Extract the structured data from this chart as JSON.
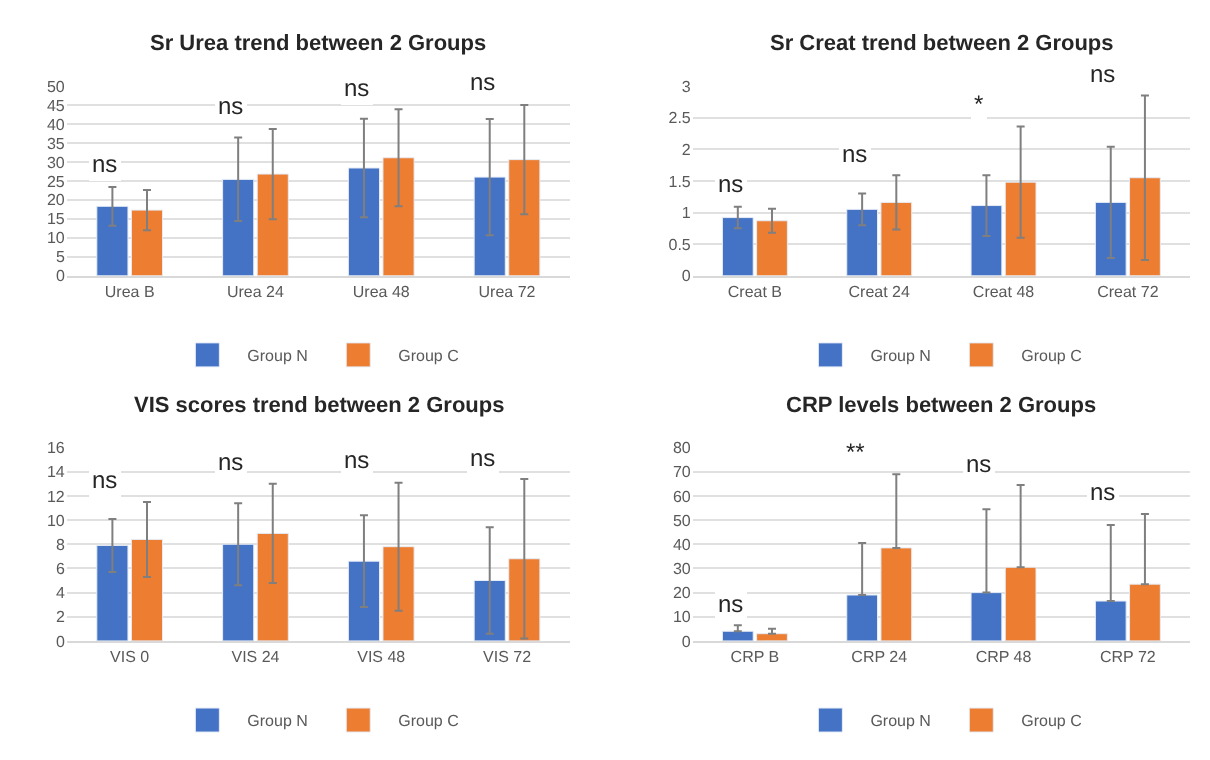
{
  "chart_data": [
    {
      "type": "bar",
      "title": "Sr Urea trend between 2 Groups",
      "categories": [
        "Urea B",
        "Urea 24",
        "Urea 48",
        "Urea 72"
      ],
      "ylim": [
        0,
        50
      ],
      "yticks": [
        0,
        5,
        10,
        15,
        20,
        25,
        30,
        35,
        40,
        45,
        50
      ],
      "grid": "y",
      "legend": "bottom",
      "series": [
        {
          "name": "Group N",
          "color": "#4472c4",
          "values": [
            18.3,
            25.4,
            28.4,
            26.0
          ],
          "errors": [
            5.1,
            11.0,
            13.0,
            15.3
          ]
        },
        {
          "name": "Group C",
          "color": "#ed7d31",
          "values": [
            17.3,
            26.8,
            31.1,
            30.6
          ],
          "errors": [
            5.3,
            11.9,
            12.8,
            14.4
          ]
        }
      ],
      "annotations": [
        "ns",
        "ns",
        "ns",
        "ns"
      ]
    },
    {
      "type": "bar",
      "title": "Sr Creat trend between 2 Groups",
      "categories": [
        "Creat B",
        "Creat 24",
        "Creat 48",
        "Creat 72"
      ],
      "ylim": [
        0,
        3
      ],
      "yticks": [
        0,
        0.5,
        1,
        1.5,
        2,
        2.5,
        3
      ],
      "grid": "y",
      "legend": "bottom",
      "series": [
        {
          "name": "Group N",
          "color": "#4472c4",
          "values": [
            0.92,
            1.05,
            1.11,
            1.16
          ],
          "errors": [
            0.17,
            0.25,
            0.48,
            0.88
          ]
        },
        {
          "name": "Group C",
          "color": "#ed7d31",
          "values": [
            0.87,
            1.16,
            1.48,
            1.55
          ],
          "errors": [
            0.19,
            0.43,
            0.88,
            1.3
          ]
        }
      ],
      "annotations": [
        "ns",
        "ns",
        "*",
        "ns"
      ]
    },
    {
      "type": "bar",
      "title": "VIS scores trend between 2 Groups",
      "categories": [
        "VIS 0",
        "VIS 24",
        "VIS 48",
        "VIS 72"
      ],
      "ylim": [
        0,
        16
      ],
      "yticks": [
        0,
        2,
        4,
        6,
        8,
        10,
        12,
        14,
        16
      ],
      "grid": "y",
      "legend": "bottom",
      "series": [
        {
          "name": "Group N",
          "color": "#4472c4",
          "values": [
            7.9,
            8.0,
            6.6,
            5.0
          ],
          "errors": [
            2.2,
            3.4,
            3.8,
            4.4
          ]
        },
        {
          "name": "Group C",
          "color": "#ed7d31",
          "values": [
            8.4,
            8.9,
            7.8,
            6.8
          ],
          "errors": [
            3.1,
            4.1,
            5.3,
            6.6
          ]
        }
      ],
      "annotations": [
        "ns",
        "ns",
        "ns",
        "ns"
      ]
    },
    {
      "type": "bar",
      "title": "CRP levels between 2 Groups",
      "categories": [
        "CRP B",
        "CRP 24",
        "CRP 48",
        "CRP 72"
      ],
      "ylim": [
        0,
        80
      ],
      "yticks": [
        0,
        10,
        20,
        30,
        40,
        50,
        60,
        70,
        80
      ],
      "grid": "y",
      "legend": "bottom",
      "series": [
        {
          "name": "Group N",
          "color": "#4472c4",
          "values": [
            4,
            19,
            20,
            16.5
          ],
          "errors": [
            [
              4,
              6.5
            ],
            [
              19,
              40.5
            ],
            [
              20,
              54.5
            ],
            [
              16.5,
              48
            ]
          ]
        },
        {
          "name": "Group C",
          "color": "#ed7d31",
          "values": [
            3,
            38.5,
            30.5,
            23.5
          ],
          "errors": [
            [
              3,
              5
            ],
            [
              38.5,
              69
            ],
            [
              30.5,
              64.5
            ],
            [
              23.5,
              52.5
            ]
          ]
        }
      ],
      "annotations": [
        "ns",
        "**",
        "ns",
        "ns"
      ]
    }
  ]
}
